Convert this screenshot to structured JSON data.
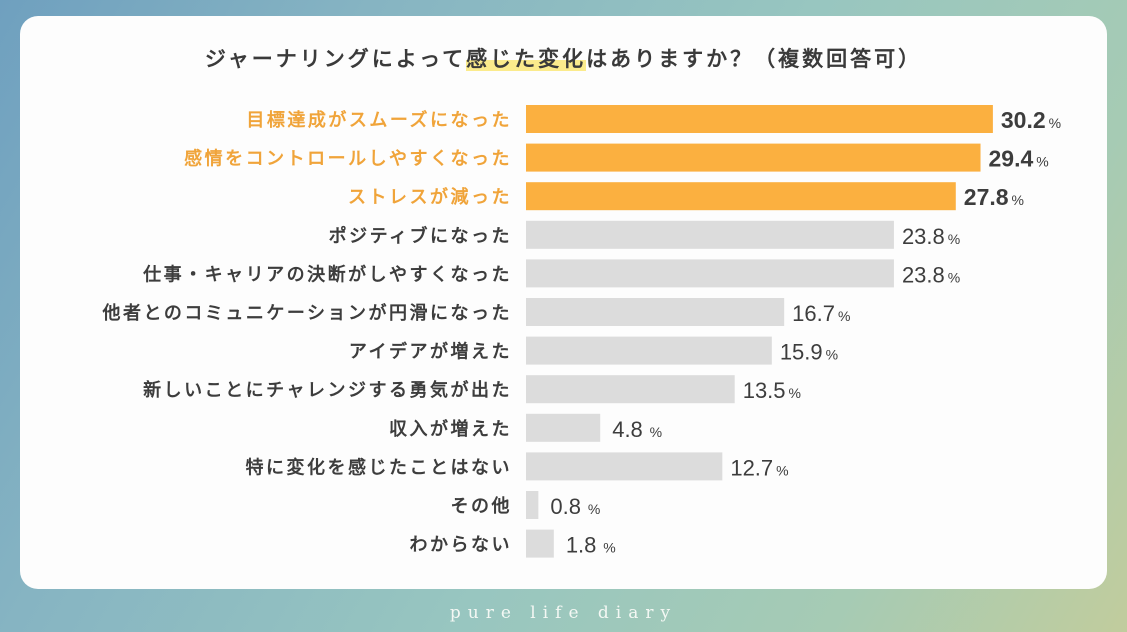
{
  "title": {
    "before": "ジャーナリングによって",
    "highlight": "感じた変化",
    "after": "はありますか？（複数回答可）"
  },
  "footer": "pure life diary",
  "colors": {
    "highlight_bar": "#FBB040",
    "highlight_label": "#F0A43A",
    "normal_bar": "#DCDCDC",
    "normal_label": "#3d3d3d",
    "value_text": "#3d3d3d"
  },
  "chart_data": {
    "type": "bar",
    "orientation": "horizontal",
    "title": "ジャーナリングによって感じた変化はありますか？（複数回答可）",
    "xlabel": "",
    "ylabel": "",
    "unit": "%",
    "grid": false,
    "categories": [
      "目標達成がスムーズになった",
      "感情をコントロールしやすくなった",
      "ストレスが減った",
      "ポジティブになった",
      "仕事・キャリアの決断がしやすくなった",
      "他者とのコミュニケーションが円滑になった",
      "アイデアが増えた",
      "新しいことにチャレンジする勇気が出た",
      "収入が増えた",
      "特に変化を感じたことはない",
      "その他",
      "わからない"
    ],
    "values": [
      30.2,
      29.4,
      27.8,
      23.8,
      23.8,
      16.7,
      15.9,
      13.5,
      4.8,
      12.7,
      0.8,
      1.8
    ],
    "value_labels": [
      "30.2",
      "29.4",
      "27.8",
      "23.8",
      "23.8",
      "16.7",
      "15.9",
      "13.5",
      "4.8",
      "12.7",
      "0.8",
      "1.8"
    ],
    "highlighted": [
      true,
      true,
      true,
      false,
      false,
      false,
      false,
      false,
      false,
      false,
      false,
      false
    ]
  }
}
